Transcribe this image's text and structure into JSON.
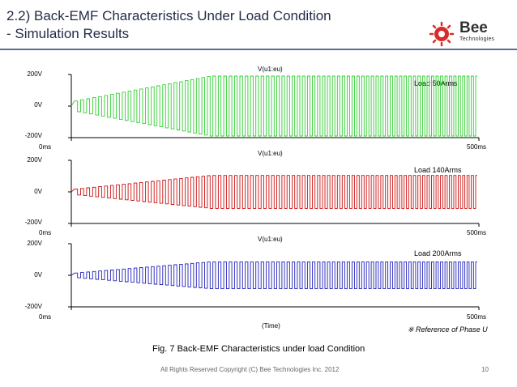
{
  "slide": {
    "title_line1": "2.2) Back-EMF Characteristics Under Load Condition",
    "title_line2": "- Simulation Results",
    "logo_word": "Bee",
    "logo_sub": "Technologies",
    "caption": "Fig. 7 Back-EMF Characteristics under load Condition",
    "reference_note": "※ Reference of Phase U",
    "footer": "All Rights Reserved Copyright (C) Bee Technologies Inc. 2012",
    "page_number": "10",
    "x_axis_label": "(Time)"
  },
  "panels": [
    {
      "trace_name": "V(u1:eu)",
      "color": "#33cc33",
      "load_label": "Load 50Arms",
      "y_ticks": [
        "200V",
        "0V",
        "-200V"
      ],
      "x_ticks": [
        "0ms",
        "500ms"
      ]
    },
    {
      "trace_name": "V(u1:eu)",
      "color": "#cc1111",
      "load_label": "Load 140Arms",
      "y_ticks": [
        "200V",
        "0V",
        "-200V"
      ],
      "x_ticks": [
        "0ms",
        "500ms"
      ]
    },
    {
      "trace_name": "V(u1:eu)",
      "color": "#2222bb",
      "load_label": "Load 200Arms",
      "y_ticks": [
        "200V",
        "0V",
        "-200V"
      ],
      "x_ticks": [
        "0ms",
        "500ms"
      ]
    }
  ]
}
